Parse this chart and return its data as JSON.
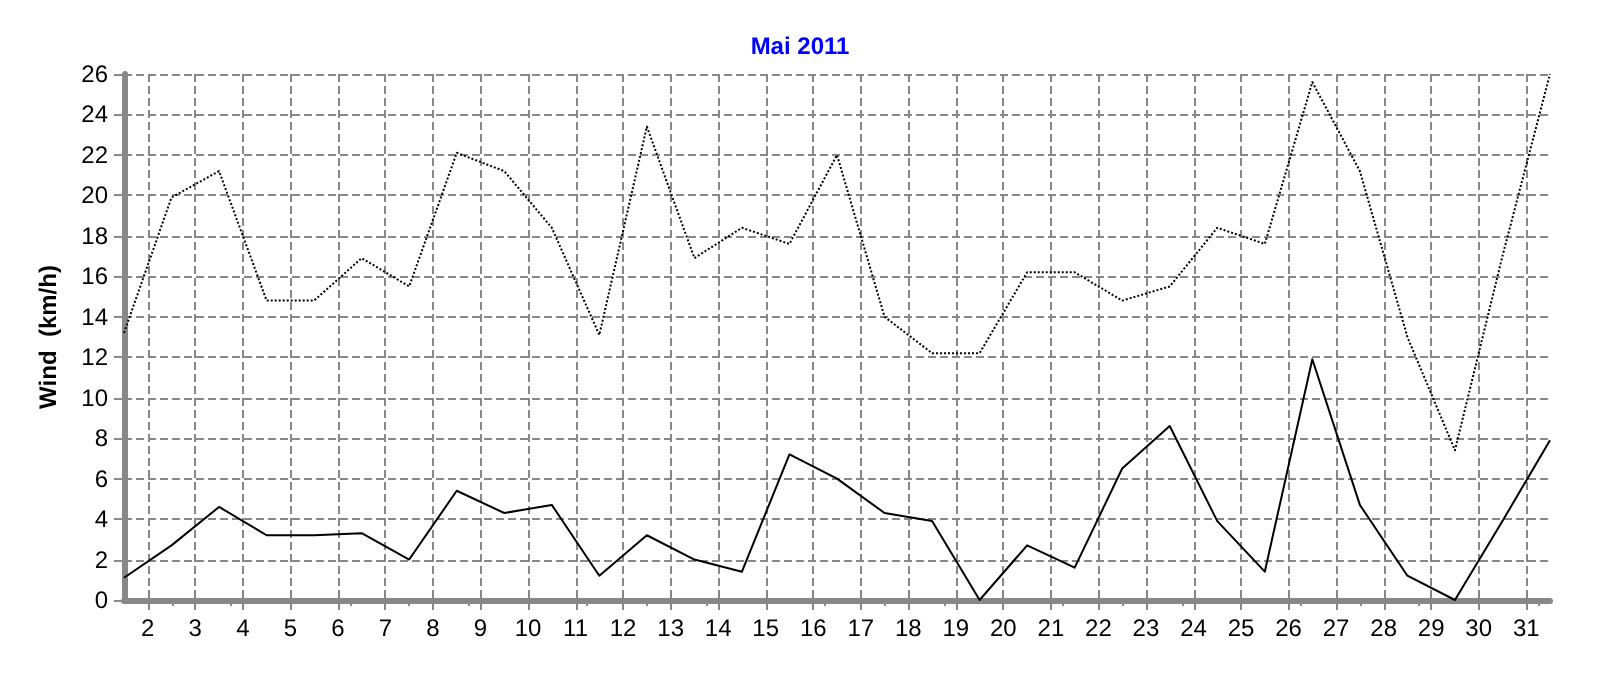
{
  "chart_data": {
    "type": "line",
    "title": "Mai 2011",
    "ylabel": "Wind  (km/h)",
    "x": [
      1.5,
      2.5,
      3.5,
      4.5,
      5.5,
      6.5,
      7.5,
      8.5,
      9.5,
      10.5,
      11.5,
      12.5,
      13.5,
      14.5,
      15.5,
      16.5,
      17.5,
      18.5,
      19.5,
      20.5,
      21.5,
      22.5,
      23.5,
      24.5,
      25.5,
      26.5,
      27.5,
      28.5,
      29.5,
      30.5,
      31.5
    ],
    "series": [
      {
        "color": "#000000",
        "line_style": "dotted",
        "values": [
          13.2,
          19.9,
          21.2,
          14.8,
          14.8,
          16.9,
          15.5,
          22.1,
          21.2,
          18.4,
          13.1,
          23.4,
          16.9,
          18.4,
          17.6,
          22.0,
          14.0,
          12.2,
          12.2,
          16.2,
          16.2,
          14.8,
          15.5,
          18.4,
          17.6,
          25.6,
          21.2,
          13.0,
          7.4,
          17.0,
          26.0
        ]
      },
      {
        "color": "#000000",
        "line_style": "solid",
        "values": [
          1.1,
          2.7,
          4.6,
          3.2,
          3.2,
          3.3,
          2.0,
          5.4,
          4.3,
          4.7,
          1.2,
          3.2,
          2.0,
          1.4,
          7.2,
          6.0,
          4.3,
          3.9,
          0.0,
          2.7,
          1.6,
          6.5,
          8.6,
          3.9,
          1.4,
          11.9,
          4.7,
          1.2,
          0.0,
          3.9,
          7.9
        ]
      }
    ],
    "xlim": [
      1.5,
      31.5
    ],
    "xticks": [
      2,
      3,
      4,
      5,
      6,
      7,
      8,
      9,
      10,
      11,
      12,
      13,
      14,
      15,
      16,
      17,
      18,
      19,
      20,
      21,
      22,
      23,
      24,
      25,
      26,
      27,
      28,
      29,
      30,
      31
    ],
    "ylim": [
      0,
      26
    ],
    "yticks": [
      0,
      2,
      4,
      6,
      8,
      10,
      12,
      14,
      16,
      18,
      20,
      22,
      24,
      26
    ],
    "grid": true,
    "marker": "none"
  }
}
